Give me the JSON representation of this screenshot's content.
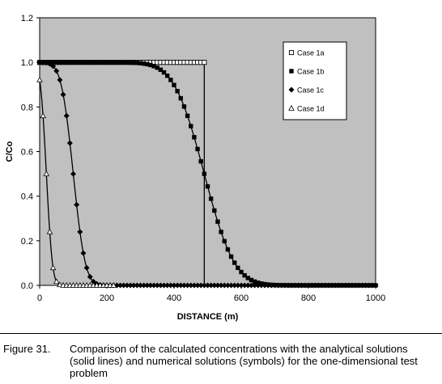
{
  "chart_data": {
    "type": "scatter",
    "xlabel": "DISTANCE (m)",
    "ylabel": "C/Co",
    "xlim": [
      0,
      1000
    ],
    "ylim": [
      0,
      1.2
    ],
    "xticks": [
      "0",
      "200",
      "400",
      "600",
      "800",
      "1000"
    ],
    "yticks": [
      "0.0",
      "0.2",
      "0.4",
      "0.6",
      "0.8",
      "1.0",
      "1.2"
    ],
    "grid": false,
    "plot_background": "#c0c0c0",
    "legend_position": "top-right",
    "series": [
      {
        "name": "Case 1a",
        "marker": "open-square",
        "front": 490,
        "width": 0,
        "marker_step": 10,
        "marker_max": 490
      },
      {
        "name": "Case 1b",
        "marker": "filled-square",
        "front": 490,
        "width": 100,
        "marker_step": 10,
        "marker_max": 1000
      },
      {
        "name": "Case 1c",
        "marker": "filled-diamond",
        "front": 100,
        "width": 40,
        "marker_step": 10,
        "marker_max": 1000
      },
      {
        "name": "Case 1d",
        "marker": "open-triangle",
        "front": 20,
        "width": 20,
        "marker_step": 10,
        "marker_max": 220
      }
    ]
  },
  "caption": {
    "number": "Figure 31.",
    "text": "Comparison of the calculated concentrations with the analytical solutions (solid lines) and numerical solutions (symbols) for the one-dimensional test problem"
  }
}
